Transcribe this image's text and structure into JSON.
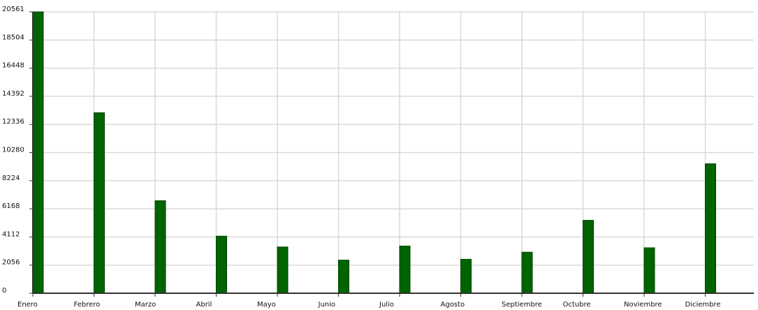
{
  "chart_data": {
    "type": "bar",
    "title": "",
    "xlabel": "",
    "ylabel": "",
    "categories": [
      "Enero",
      "Febrero",
      "Marzo",
      "Abril",
      "Mayo",
      "Junio",
      "Julio",
      "Agosto",
      "Septiembre",
      "Octubre",
      "Noviembre",
      "Diciembre"
    ],
    "values": [
      20561,
      13190,
      6760,
      4170,
      3380,
      2420,
      3450,
      2480,
      3000,
      5330,
      3320,
      9460
    ],
    "y_ticks": [
      0,
      2056,
      4112,
      6168,
      8224,
      10280,
      12336,
      14392,
      16448,
      18504,
      20561
    ],
    "y_tick_labels": [
      "0",
      "2056",
      "4112",
      "6168",
      "8224",
      "10280",
      "12336",
      "14392",
      "16448",
      "18504",
      "20561"
    ],
    "ylim": [
      0,
      20561
    ],
    "grid": true,
    "legend": "none",
    "colors": {
      "bar": "#006400",
      "bar_edge": "#004400",
      "grid": "#d9d9d9",
      "axis": "#333333"
    }
  }
}
